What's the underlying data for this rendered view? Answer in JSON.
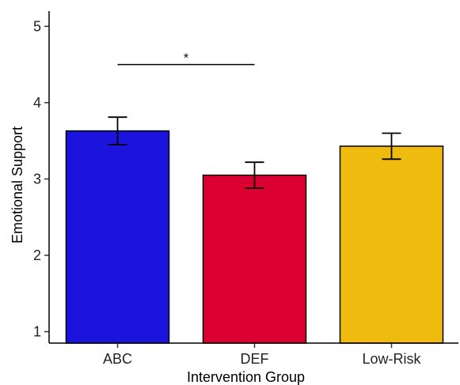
{
  "chart_data": {
    "type": "bar",
    "categories": [
      "ABC",
      "DEF",
      "Low-Risk"
    ],
    "values": [
      3.63,
      3.05,
      3.43
    ],
    "error_bars": {
      "lower": [
        3.45,
        2.88,
        3.26
      ],
      "upper": [
        3.81,
        3.22,
        3.6
      ]
    },
    "colors": [
      "#1a14dc",
      "#dc0032",
      "#f0bb0f"
    ],
    "xlabel": "Intervention Group",
    "ylabel": "Emotional Support",
    "ylim": [
      0.85,
      5.2
    ],
    "yticks": [
      1,
      2,
      3,
      4,
      5
    ],
    "grid": false,
    "annotations": [
      {
        "text": "*",
        "from": "ABC",
        "to": "DEF",
        "y": 4.5
      }
    ]
  }
}
